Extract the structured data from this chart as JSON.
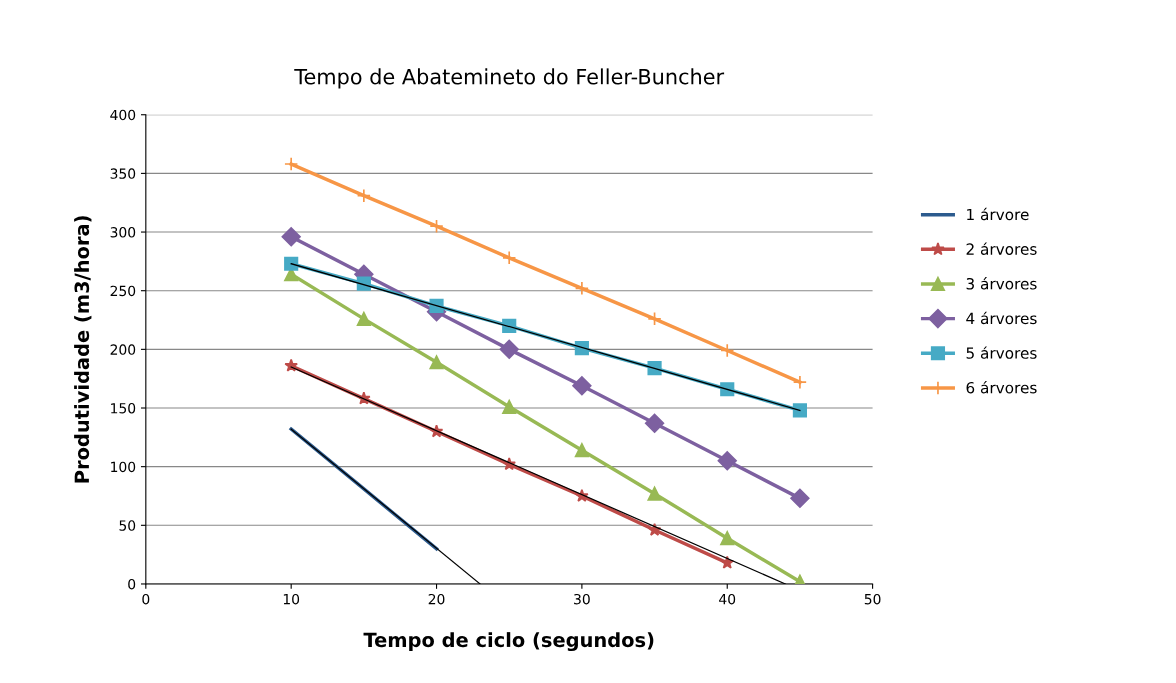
{
  "chart_data": {
    "type": "line",
    "title": "Tempo de Abatemineto do Feller-Buncher",
    "xlabel": "Tempo de ciclo (segundos)",
    "ylabel": "Produtividade (m3/hora)",
    "xlim": [
      0,
      50
    ],
    "xticks": [
      0,
      10,
      20,
      30,
      40,
      50
    ],
    "ylim": [
      0,
      400
    ],
    "yticks": [
      0,
      50,
      100,
      150,
      200,
      250,
      300,
      350,
      400
    ],
    "grid": "y",
    "legend": "right",
    "series": [
      {
        "name": "1 árvore",
        "color": "#2c5b8e",
        "marker": "none",
        "x": [
          10,
          15,
          20
        ],
        "values": [
          132,
          81,
          30
        ]
      },
      {
        "name": "2 árvores",
        "color": "#be4b48",
        "marker": "star",
        "x": [
          10,
          15,
          20,
          25,
          30,
          35,
          40
        ],
        "values": [
          186,
          158,
          130,
          102,
          75,
          46,
          18
        ]
      },
      {
        "name": "3 árvores",
        "color": "#98b954",
        "marker": "triangle",
        "x": [
          10,
          15,
          20,
          25,
          30,
          35,
          40,
          45
        ],
        "values": [
          264,
          226,
          189,
          151,
          114,
          77,
          39,
          2
        ]
      },
      {
        "name": "4 árvores",
        "color": "#7d60a0",
        "marker": "diamond",
        "x": [
          10,
          15,
          20,
          25,
          30,
          35,
          40,
          45
        ],
        "values": [
          296,
          264,
          232,
          200,
          169,
          137,
          105,
          73
        ]
      },
      {
        "name": "5 árvores",
        "color": "#46aac5",
        "marker": "square",
        "x": [
          10,
          15,
          20,
          25,
          30,
          35,
          40,
          45
        ],
        "values": [
          273,
          256,
          237,
          220,
          201,
          184,
          166,
          148
        ]
      },
      {
        "name": "6 árvores",
        "color": "#f79646",
        "marker": "cross",
        "x": [
          10,
          15,
          20,
          25,
          30,
          35,
          40,
          45
        ],
        "values": [
          358,
          331,
          305,
          278,
          252,
          226,
          199,
          172
        ]
      },
      {
        "color": "#000000",
        "marker": "none",
        "x": [
          10,
          23
        ],
        "values": [
          132,
          0
        ]
      },
      {
        "color": "#000000",
        "marker": "none",
        "x": [
          10,
          44
        ],
        "values": [
          185,
          0
        ]
      },
      {
        "color": "#000000",
        "marker": "none",
        "x": [
          10,
          45
        ],
        "values": [
          273,
          148
        ]
      }
    ]
  }
}
